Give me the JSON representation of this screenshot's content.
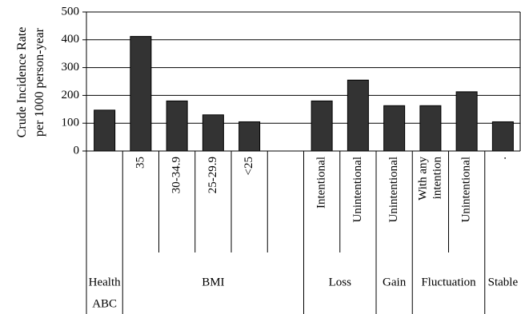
{
  "chart_data": {
    "type": "bar",
    "ylabel_lines": [
      "Crude Incidence Rate",
      "per 1000 person-year"
    ],
    "ylim": [
      0,
      500
    ],
    "yticks": [
      "0",
      "100",
      "200",
      "300",
      "400",
      "500"
    ],
    "grid": true,
    "categories": [
      "",
      "35",
      "30-34.9",
      "25-29.9",
      "<25",
      "",
      "Intentional",
      "Unintentional",
      "Unintentional",
      "With any intention",
      "Unintentional",
      "."
    ],
    "values": [
      147,
      412,
      180,
      130,
      105,
      null,
      180,
      255,
      163,
      163,
      213,
      105
    ],
    "groups": [
      {
        "label": "Health ABC",
        "lines": [
          "Health",
          "ABC"
        ],
        "start": 0,
        "end": 0
      },
      {
        "label": "BMI",
        "lines": [
          "BMI"
        ],
        "start": 1,
        "end": 5
      },
      {
        "label": "Loss",
        "lines": [
          "Loss"
        ],
        "start": 6,
        "end": 7
      },
      {
        "label": "Gain",
        "lines": [
          "Gain"
        ],
        "start": 8,
        "end": 8
      },
      {
        "label": "Fluctuation",
        "lines": [
          "Fluctuation"
        ],
        "start": 9,
        "end": 10
      },
      {
        "label": "Stable",
        "lines": [
          "Stable"
        ],
        "start": 11,
        "end": 11
      }
    ]
  }
}
